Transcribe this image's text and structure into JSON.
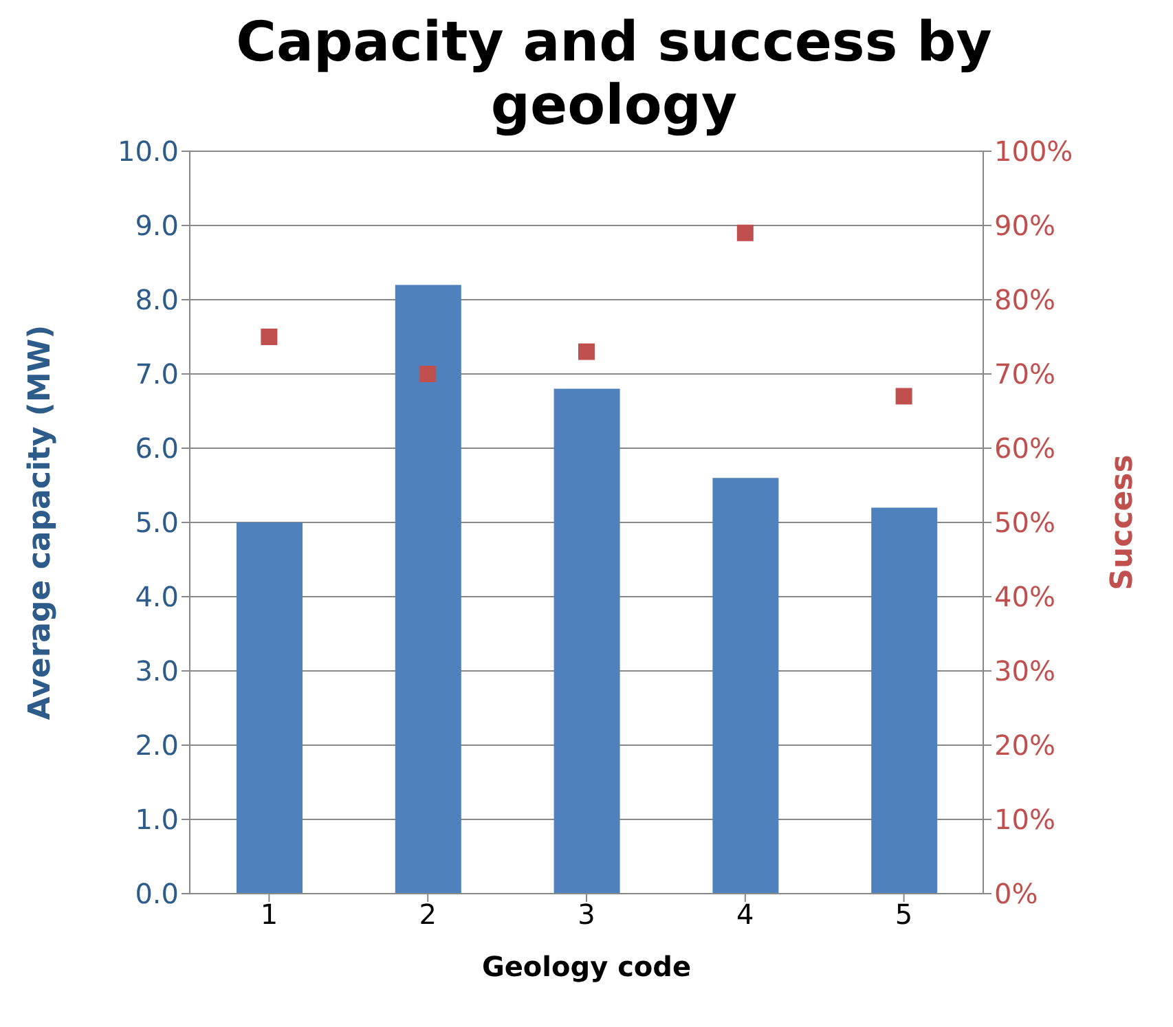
{
  "chart_data": {
    "type": "bar",
    "title": "Capacity and success by geology",
    "xlabel": "Geology code",
    "ylabel": "Average capacity (MW)",
    "y2label": "Success",
    "categories": [
      "1",
      "2",
      "3",
      "4",
      "5"
    ],
    "series": [
      {
        "color": "#4f81bd",
        "values": [
          5.0,
          8.2,
          6.8,
          5.6,
          5.2
        ]
      },
      {
        "type": "scatter",
        "axis": "y2",
        "color": "#c0504d",
        "marker": "square",
        "values": [
          75,
          70,
          73,
          89,
          67
        ]
      }
    ],
    "ylim": [
      0,
      10
    ],
    "yticks": [
      {
        "value": 0,
        "label": "0.0"
      },
      {
        "value": 1,
        "label": "1.0"
      },
      {
        "value": 2,
        "label": "2.0"
      },
      {
        "value": 3,
        "label": "3.0"
      },
      {
        "value": 4,
        "label": "4.0"
      },
      {
        "value": 5,
        "label": "5.0"
      },
      {
        "value": 6,
        "label": "6.0"
      },
      {
        "value": 7,
        "label": "7.0"
      },
      {
        "value": 8,
        "label": "8.0"
      },
      {
        "value": 9,
        "label": "9.0"
      },
      {
        "value": 10,
        "label": "10.0"
      }
    ],
    "y2lim": [
      0,
      100
    ],
    "y2ticks": [
      {
        "value": 0,
        "label": "0%"
      },
      {
        "value": 10,
        "label": "10%"
      },
      {
        "value": 20,
        "label": "20%"
      },
      {
        "value": 30,
        "label": "30%"
      },
      {
        "value": 40,
        "label": "40%"
      },
      {
        "value": 50,
        "label": "50%"
      },
      {
        "value": 60,
        "label": "60%"
      },
      {
        "value": 70,
        "label": "70%"
      },
      {
        "value": 80,
        "label": "80%"
      },
      {
        "value": 90,
        "label": "90%"
      },
      {
        "value": 100,
        "label": "100%"
      }
    ],
    "grid": "y",
    "legend": false
  }
}
